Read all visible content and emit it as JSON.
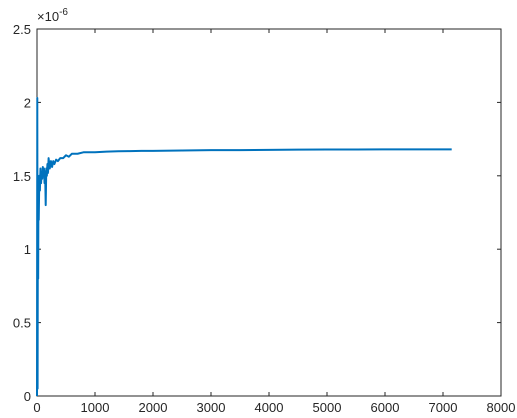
{
  "chart_data": {
    "type": "line",
    "title": "",
    "xlabel": "",
    "ylabel": "",
    "xlim": [
      0,
      8000
    ],
    "ylim": [
      0,
      2.5
    ],
    "y_multiplier": "×10",
    "y_exponent": "-6",
    "xticks": [
      0,
      1000,
      2000,
      3000,
      4000,
      5000,
      6000,
      7000,
      8000
    ],
    "xtick_labels": [
      "0",
      "1000",
      "2000",
      "3000",
      "4000",
      "5000",
      "6000",
      "7000",
      "8000"
    ],
    "yticks": [
      0,
      0.5,
      1,
      1.5,
      2,
      2.5
    ],
    "ytick_labels": [
      "0",
      "0.5",
      "1",
      "1.5",
      "2",
      "2.5"
    ],
    "grid": false,
    "series": [
      {
        "color": "#0072BD",
        "x": [
          0,
          5,
          10,
          15,
          20,
          25,
          30,
          40,
          50,
          60,
          70,
          80,
          90,
          100,
          110,
          120,
          130,
          140,
          150,
          160,
          170,
          180,
          190,
          200,
          220,
          240,
          260,
          280,
          300,
          330,
          360,
          400,
          450,
          500,
          550,
          600,
          700,
          800,
          900,
          1000,
          1200,
          1400,
          1600,
          1800,
          2000,
          2500,
          3000,
          3500,
          4000,
          4500,
          5000,
          5500,
          6000,
          6500,
          7000,
          7150
        ],
        "y": [
          0,
          2.03,
          0.05,
          1.3,
          0.8,
          1.45,
          1.2,
          1.5,
          1.4,
          1.55,
          1.45,
          1.52,
          1.48,
          1.56,
          1.5,
          1.55,
          1.45,
          1.53,
          1.3,
          1.55,
          1.5,
          1.58,
          1.52,
          1.62,
          1.55,
          1.6,
          1.56,
          1.6,
          1.58,
          1.61,
          1.6,
          1.62,
          1.62,
          1.64,
          1.63,
          1.65,
          1.65,
          1.66,
          1.66,
          1.66,
          1.665,
          1.667,
          1.668,
          1.67,
          1.67,
          1.672,
          1.675,
          1.675,
          1.677,
          1.678,
          1.679,
          1.679,
          1.68,
          1.68,
          1.68,
          1.68
        ]
      }
    ]
  }
}
